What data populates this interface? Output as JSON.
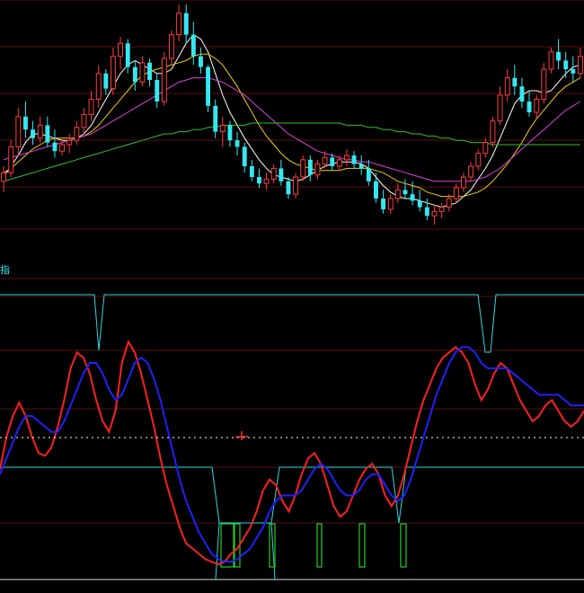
{
  "colors": {
    "background": "#000000",
    "up": "#ff3b3b",
    "down": "#34e8f0",
    "ma5": "#ffffff",
    "ma10": "#f0d000",
    "ma20": "#e040e0",
    "ma60": "#30c030",
    "grid": "#5a0f0f",
    "k_line": "#ff2020",
    "d_line": "#2020ff",
    "envelope": "#30d8e0",
    "signal": "#20d020",
    "zero_line": "#ffffff",
    "cross_mark": "#ff3030"
  },
  "panel_label": "指",
  "chart_data": [
    {
      "type": "candlestick",
      "x_index_range": [
        0,
        99
      ],
      "ylim": [
        0,
        100
      ],
      "candles": [
        {
          "o": 18,
          "h": 25,
          "l": 13,
          "c": 22
        },
        {
          "o": 22,
          "h": 37,
          "l": 20,
          "c": 34
        },
        {
          "o": 34,
          "h": 52,
          "l": 30,
          "c": 48
        },
        {
          "o": 48,
          "h": 55,
          "l": 38,
          "c": 42
        },
        {
          "o": 42,
          "h": 46,
          "l": 35,
          "c": 38
        },
        {
          "o": 38,
          "h": 48,
          "l": 36,
          "c": 44
        },
        {
          "o": 44,
          "h": 48,
          "l": 34,
          "c": 36
        },
        {
          "o": 36,
          "h": 42,
          "l": 29,
          "c": 32
        },
        {
          "o": 32,
          "h": 38,
          "l": 30,
          "c": 35
        },
        {
          "o": 35,
          "h": 40,
          "l": 31,
          "c": 37
        },
        {
          "o": 37,
          "h": 46,
          "l": 35,
          "c": 43
        },
        {
          "o": 43,
          "h": 52,
          "l": 40,
          "c": 49
        },
        {
          "o": 49,
          "h": 60,
          "l": 46,
          "c": 56
        },
        {
          "o": 56,
          "h": 72,
          "l": 52,
          "c": 68
        },
        {
          "o": 68,
          "h": 70,
          "l": 58,
          "c": 61
        },
        {
          "o": 61,
          "h": 80,
          "l": 58,
          "c": 76
        },
        {
          "o": 76,
          "h": 85,
          "l": 70,
          "c": 82
        },
        {
          "o": 82,
          "h": 84,
          "l": 68,
          "c": 71
        },
        {
          "o": 71,
          "h": 74,
          "l": 60,
          "c": 64
        },
        {
          "o": 64,
          "h": 76,
          "l": 62,
          "c": 73
        },
        {
          "o": 73,
          "h": 75,
          "l": 62,
          "c": 65
        },
        {
          "o": 65,
          "h": 68,
          "l": 52,
          "c": 55
        },
        {
          "o": 55,
          "h": 78,
          "l": 53,
          "c": 75
        },
        {
          "o": 75,
          "h": 88,
          "l": 72,
          "c": 86
        },
        {
          "o": 86,
          "h": 100,
          "l": 83,
          "c": 96
        },
        {
          "o": 96,
          "h": 100,
          "l": 82,
          "c": 86
        },
        {
          "o": 86,
          "h": 92,
          "l": 72,
          "c": 76
        },
        {
          "o": 76,
          "h": 80,
          "l": 68,
          "c": 71
        },
        {
          "o": 71,
          "h": 72,
          "l": 50,
          "c": 53
        },
        {
          "o": 53,
          "h": 56,
          "l": 38,
          "c": 41
        },
        {
          "o": 41,
          "h": 48,
          "l": 34,
          "c": 44
        },
        {
          "o": 44,
          "h": 46,
          "l": 34,
          "c": 37
        },
        {
          "o": 37,
          "h": 41,
          "l": 30,
          "c": 34
        },
        {
          "o": 34,
          "h": 36,
          "l": 22,
          "c": 25
        },
        {
          "o": 25,
          "h": 28,
          "l": 18,
          "c": 20
        },
        {
          "o": 20,
          "h": 24,
          "l": 15,
          "c": 17
        },
        {
          "o": 17,
          "h": 22,
          "l": 14,
          "c": 19
        },
        {
          "o": 19,
          "h": 26,
          "l": 17,
          "c": 24
        },
        {
          "o": 24,
          "h": 28,
          "l": 16,
          "c": 18
        },
        {
          "o": 18,
          "h": 20,
          "l": 10,
          "c": 12
        },
        {
          "o": 12,
          "h": 22,
          "l": 10,
          "c": 20
        },
        {
          "o": 20,
          "h": 30,
          "l": 18,
          "c": 28
        },
        {
          "o": 28,
          "h": 30,
          "l": 18,
          "c": 21
        },
        {
          "o": 21,
          "h": 28,
          "l": 19,
          "c": 26
        },
        {
          "o": 26,
          "h": 32,
          "l": 24,
          "c": 29
        },
        {
          "o": 29,
          "h": 31,
          "l": 23,
          "c": 25
        },
        {
          "o": 25,
          "h": 30,
          "l": 23,
          "c": 28
        },
        {
          "o": 28,
          "h": 33,
          "l": 25,
          "c": 30
        },
        {
          "o": 30,
          "h": 32,
          "l": 24,
          "c": 26
        },
        {
          "o": 26,
          "h": 30,
          "l": 21,
          "c": 24
        },
        {
          "o": 24,
          "h": 28,
          "l": 16,
          "c": 18
        },
        {
          "o": 18,
          "h": 22,
          "l": 8,
          "c": 10
        },
        {
          "o": 10,
          "h": 14,
          "l": 3,
          "c": 5
        },
        {
          "o": 5,
          "h": 12,
          "l": 3,
          "c": 10
        },
        {
          "o": 10,
          "h": 17,
          "l": 8,
          "c": 14
        },
        {
          "o": 14,
          "h": 19,
          "l": 10,
          "c": 12
        },
        {
          "o": 12,
          "h": 18,
          "l": 7,
          "c": 9
        },
        {
          "o": 9,
          "h": 14,
          "l": 4,
          "c": 6
        },
        {
          "o": 6,
          "h": 10,
          "l": 0,
          "c": 2
        },
        {
          "o": 2,
          "h": 7,
          "l": -2,
          "c": 4
        },
        {
          "o": 4,
          "h": 8,
          "l": 1,
          "c": 6
        },
        {
          "o": 6,
          "h": 12,
          "l": 4,
          "c": 10
        },
        {
          "o": 10,
          "h": 17,
          "l": 8,
          "c": 15
        },
        {
          "o": 15,
          "h": 22,
          "l": 13,
          "c": 20
        },
        {
          "o": 20,
          "h": 27,
          "l": 18,
          "c": 25
        },
        {
          "o": 25,
          "h": 33,
          "l": 23,
          "c": 31
        },
        {
          "o": 31,
          "h": 38,
          "l": 29,
          "c": 36
        },
        {
          "o": 36,
          "h": 48,
          "l": 34,
          "c": 46
        },
        {
          "o": 46,
          "h": 62,
          "l": 44,
          "c": 58
        },
        {
          "o": 58,
          "h": 70,
          "l": 55,
          "c": 66
        },
        {
          "o": 66,
          "h": 72,
          "l": 58,
          "c": 62
        },
        {
          "o": 62,
          "h": 66,
          "l": 52,
          "c": 55
        },
        {
          "o": 55,
          "h": 60,
          "l": 48,
          "c": 50
        },
        {
          "o": 50,
          "h": 58,
          "l": 47,
          "c": 56
        },
        {
          "o": 56,
          "h": 73,
          "l": 54,
          "c": 70
        },
        {
          "o": 70,
          "h": 80,
          "l": 68,
          "c": 78
        },
        {
          "o": 78,
          "h": 84,
          "l": 70,
          "c": 74
        },
        {
          "o": 74,
          "h": 78,
          "l": 66,
          "c": 70
        },
        {
          "o": 70,
          "h": 76,
          "l": 64,
          "c": 68
        },
        {
          "o": 68,
          "h": 80,
          "l": 66,
          "c": 76
        }
      ],
      "moving_averages": [
        {
          "name": "MA5",
          "values": [
            20,
            25,
            30,
            36,
            40,
            40,
            39,
            38,
            37,
            37,
            38,
            40,
            44,
            50,
            56,
            62,
            68,
            72,
            74,
            72,
            70,
            68,
            68,
            70,
            76,
            82,
            86,
            84,
            78,
            68,
            58,
            50,
            44,
            38,
            33,
            28,
            24,
            21,
            20,
            19,
            18,
            19,
            21,
            23,
            25,
            26,
            27,
            27,
            27,
            26,
            24,
            20,
            16,
            13,
            11,
            10,
            10,
            9,
            8,
            7,
            6,
            7,
            8,
            11,
            14,
            19,
            24,
            30,
            38,
            46,
            54,
            58,
            60,
            60,
            59,
            60,
            64,
            68,
            71,
            72
          ]
        },
        {
          "name": "MA10",
          "values": [
            22,
            24,
            27,
            30,
            33,
            35,
            37,
            38,
            38,
            38,
            38,
            39,
            41,
            44,
            48,
            52,
            56,
            60,
            64,
            67,
            69,
            70,
            71,
            72,
            73,
            74,
            76,
            77,
            77,
            75,
            72,
            67,
            62,
            56,
            50,
            44,
            39,
            35,
            31,
            28,
            26,
            25,
            24,
            23,
            23,
            23,
            23,
            24,
            24,
            24,
            24,
            23,
            22,
            20,
            18,
            17,
            16,
            15,
            13,
            12,
            11,
            11,
            11,
            11,
            12,
            13,
            15,
            18,
            22,
            26,
            31,
            36,
            42,
            47,
            51,
            55,
            59,
            62,
            64,
            66
          ]
        },
        {
          "name": "MA20",
          "values": [
            28,
            29,
            30,
            31,
            32,
            33,
            34,
            35,
            36,
            37,
            38,
            39,
            40,
            42,
            44,
            46,
            48,
            50,
            52,
            54,
            56,
            58,
            60,
            62,
            64,
            65,
            66,
            66,
            66,
            65,
            64,
            62,
            60,
            58,
            55,
            52,
            49,
            46,
            43,
            40,
            38,
            36,
            34,
            32,
            31,
            30,
            29,
            28,
            28,
            27,
            27,
            26,
            25,
            24,
            23,
            22,
            21,
            20,
            19,
            18,
            18,
            18,
            18,
            18,
            18,
            19,
            20,
            22,
            24,
            27,
            30,
            33,
            36,
            39,
            42,
            45,
            48,
            51,
            53,
            55
          ]
        },
        {
          "name": "MA60",
          "values": [
            18,
            19,
            20,
            21,
            22,
            23,
            24,
            25,
            26,
            27,
            28,
            29,
            30,
            31,
            32,
            33,
            34,
            35,
            36,
            37,
            38,
            39,
            40,
            40,
            41,
            41,
            42,
            42,
            43,
            43,
            44,
            44,
            44,
            44,
            45,
            45,
            45,
            45,
            45,
            45,
            45,
            45,
            45,
            45,
            45,
            45,
            45,
            44,
            44,
            44,
            43,
            43,
            42,
            42,
            41,
            41,
            40,
            40,
            39,
            39,
            38,
            38,
            37,
            37,
            36,
            36,
            36,
            35,
            35,
            35,
            35,
            35,
            35,
            35,
            35,
            35,
            35,
            35,
            35,
            35
          ]
        }
      ]
    },
    {
      "type": "line",
      "x_index_range": [
        0,
        99
      ],
      "ylim": [
        0,
        100
      ],
      "series": [
        {
          "values": [
            40,
            52,
            60,
            65,
            60,
            52,
            46,
            45,
            48,
            56,
            66,
            78,
            84,
            82,
            76,
            66,
            58,
            54,
            62,
            80,
            88,
            84,
            76,
            66,
            56,
            44,
            34,
            26,
            18,
            12,
            10,
            8,
            6,
            5,
            4,
            5,
            8,
            10,
            14,
            18,
            24,
            32,
            36,
            34,
            28,
            24,
            30,
            38,
            44,
            46,
            42,
            34,
            26,
            22,
            24,
            30,
            36,
            40,
            42,
            38,
            30,
            26,
            30,
            38,
            48,
            58,
            66,
            72,
            78,
            82,
            84,
            86,
            84,
            80,
            72,
            66,
            70,
            76,
            80,
            78,
            72,
            66,
            62,
            58,
            60,
            64,
            66,
            62,
            58,
            56,
            58,
            62
          ]
        },
        {
          "values": [
            38,
            44,
            50,
            56,
            60,
            60,
            58,
            56,
            54,
            54,
            58,
            64,
            70,
            76,
            80,
            80,
            76,
            70,
            66,
            68,
            74,
            80,
            82,
            80,
            74,
            66,
            56,
            46,
            36,
            28,
            22,
            16,
            12,
            8,
            6,
            5,
            5,
            6,
            8,
            10,
            14,
            18,
            24,
            28,
            30,
            30,
            30,
            32,
            36,
            40,
            42,
            40,
            36,
            32,
            30,
            30,
            32,
            36,
            38,
            38,
            34,
            30,
            28,
            30,
            36,
            44,
            52,
            60,
            68,
            74,
            80,
            84,
            86,
            86,
            84,
            80,
            78,
            78,
            78,
            78,
            76,
            74,
            72,
            70,
            68,
            68,
            68,
            68,
            66,
            64,
            64,
            64
          ]
        }
      ]
    }
  ]
}
